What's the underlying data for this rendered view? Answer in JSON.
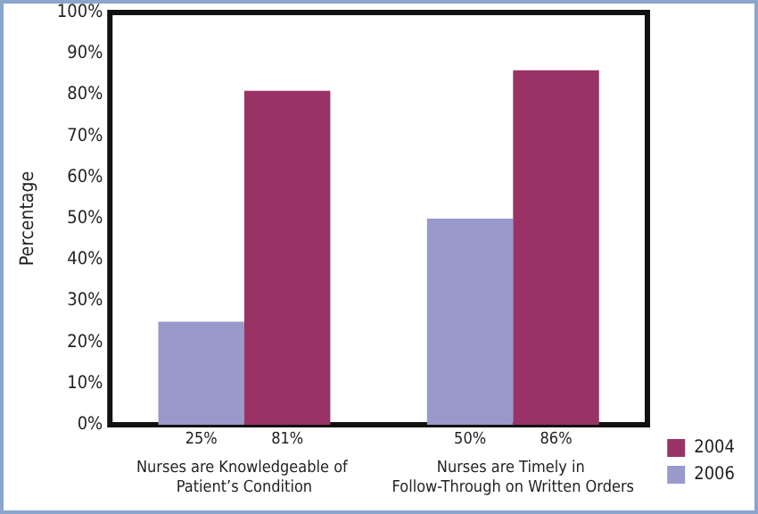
{
  "chart_data": {
    "type": "bar",
    "ylabel": "Percentage",
    "categories": [
      "Nurses are Knowledgeable of Patient’s Condition",
      "Nurses are Timely in Follow-Through on Written Orders"
    ],
    "series": [
      {
        "name": "2006",
        "color": "#9999cc",
        "values": [
          25,
          50
        ],
        "value_labels": [
          "25%",
          "50%"
        ]
      },
      {
        "name": "2004",
        "color": "#993366",
        "values": [
          81,
          86
        ],
        "value_labels": [
          "81%",
          "86%"
        ]
      }
    ],
    "ylim": [
      0,
      100
    ],
    "yticks": [
      {
        "value": 0,
        "label": "0%"
      },
      {
        "value": 10,
        "label": "10%"
      },
      {
        "value": 20,
        "label": "20%"
      },
      {
        "value": 30,
        "label": "30%"
      },
      {
        "value": 40,
        "label": "40%"
      },
      {
        "value": 50,
        "label": "50%"
      },
      {
        "value": 60,
        "label": "60%"
      },
      {
        "value": 70,
        "label": "70%"
      },
      {
        "value": 80,
        "label": "80%"
      },
      {
        "value": 90,
        "label": "90%"
      },
      {
        "value": 100,
        "label": "100%"
      }
    ],
    "grid": false,
    "legend": "bottom right"
  }
}
